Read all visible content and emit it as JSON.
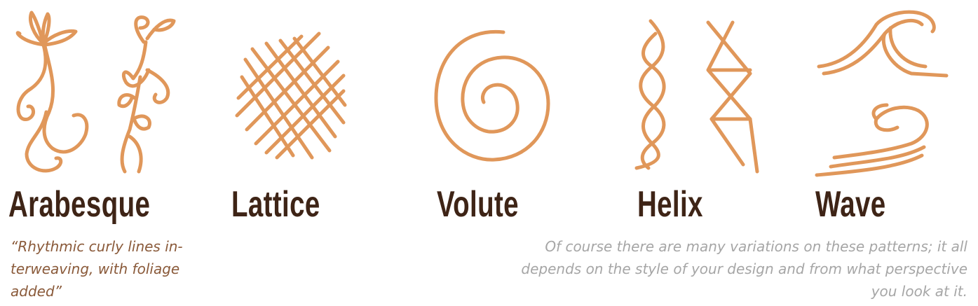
{
  "colors": {
    "stroke": "#E0975A",
    "title": "#3E2416",
    "caption": "#8A5A3A",
    "note": "#A6A6A6"
  },
  "patterns": [
    {
      "key": "arabesque",
      "title": "Arabesque",
      "icon": "arabesque-icon"
    },
    {
      "key": "lattice",
      "title": "Lattice",
      "icon": "lattice-icon"
    },
    {
      "key": "volute",
      "title": "Volute",
      "icon": "volute-icon"
    },
    {
      "key": "helix",
      "title": "Helix",
      "icon": "helix-icon"
    },
    {
      "key": "wave",
      "title": "Wave",
      "icon": "wave-icon"
    }
  ],
  "arabesque_caption": "“Rhythmic curly lines in-terweaving, with foliage added”",
  "note": "Of course there are many variations on these patterns; it all depends on the style of your design and from what perspective you look at it."
}
